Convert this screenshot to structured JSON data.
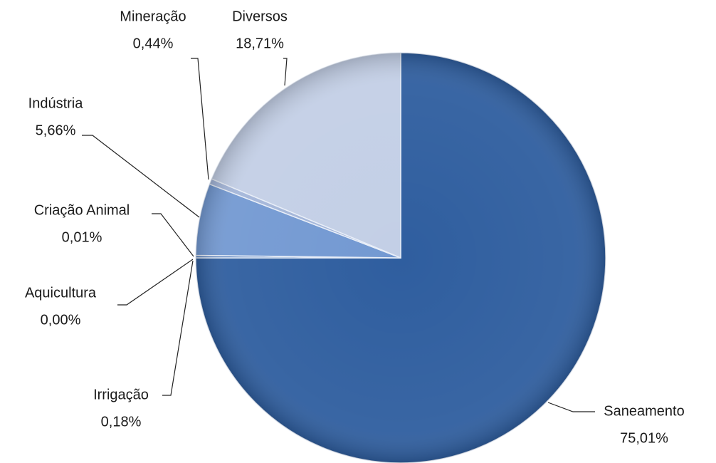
{
  "chart_data": {
    "type": "pie",
    "categories": [
      "Saneamento",
      "Irrigação",
      "Aquicultura",
      "Criação Animal",
      "Indústria",
      "Mineração",
      "Diversos"
    ],
    "values": [
      75.01,
      0.18,
      0.0,
      0.01,
      5.66,
      0.44,
      18.71
    ],
    "value_labels": [
      "75,01%",
      "0,18%",
      "0,00%",
      "0,01%",
      "5,66%",
      "0,44%",
      "18,71%"
    ],
    "colors": [
      "#2f5e9f",
      "#4a76b8",
      "#5a84c2",
      "#6a90cb",
      "#7399d2",
      "#a4b6d9",
      "#c3cfe6"
    ]
  }
}
